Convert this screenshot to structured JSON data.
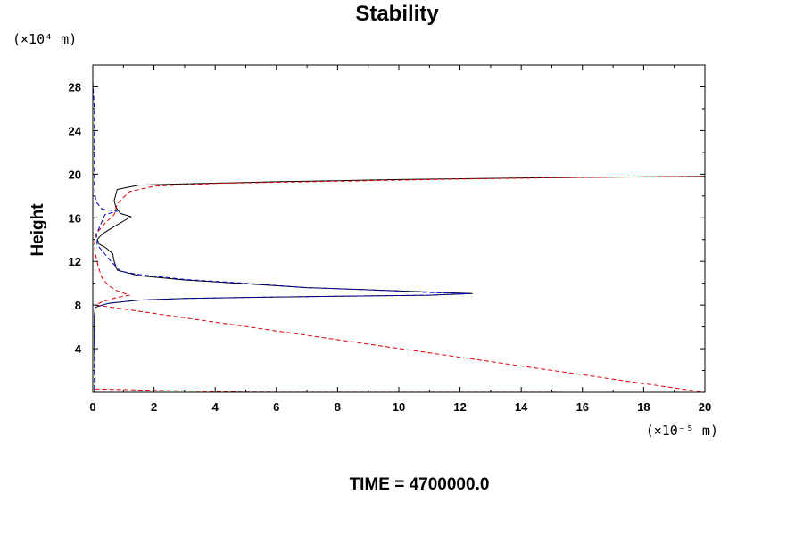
{
  "chart_data": {
    "type": "line",
    "title": "Stability",
    "ylabel": "Height",
    "y_unit": "(×10⁴ m)",
    "x_unit": "(×10⁻⁵ m)",
    "footer": "TIME = 4700000.0",
    "xlim": [
      0,
      20
    ],
    "ylim": [
      0,
      30
    ],
    "x_ticks": [
      0,
      2,
      4,
      6,
      8,
      10,
      12,
      14,
      16,
      18,
      20
    ],
    "y_ticks": [
      4,
      8,
      12,
      16,
      20,
      24,
      28
    ],
    "grid": false,
    "series": [
      {
        "color": "#000000",
        "dash": "solid",
        "points": [
          [
            0.05,
            0
          ],
          [
            0.08,
            1
          ],
          [
            0.06,
            3
          ],
          [
            0.05,
            5
          ],
          [
            0.05,
            7
          ],
          [
            0.08,
            7.8
          ],
          [
            0.5,
            8.15
          ],
          [
            1.5,
            8.45
          ],
          [
            3,
            8.6
          ],
          [
            5,
            8.7
          ],
          [
            8,
            8.8
          ],
          [
            11,
            8.9
          ],
          [
            12.4,
            9.05
          ],
          [
            11,
            9.2
          ],
          [
            9,
            9.4
          ],
          [
            7,
            9.6
          ],
          [
            5,
            9.95
          ],
          [
            3,
            10.3
          ],
          [
            1.5,
            10.7
          ],
          [
            0.8,
            11.2
          ],
          [
            0.7,
            12
          ],
          [
            0.65,
            12.7
          ],
          [
            0.4,
            13.3
          ],
          [
            0.2,
            13.6
          ],
          [
            0.15,
            14
          ],
          [
            0.3,
            14.5
          ],
          [
            0.7,
            15.2
          ],
          [
            1.25,
            16.1
          ],
          [
            0.9,
            16.4
          ],
          [
            0.75,
            17
          ],
          [
            0.7,
            17.6
          ],
          [
            0.8,
            18.6
          ],
          [
            1.5,
            19
          ],
          [
            3,
            19.1
          ],
          [
            6,
            19.3
          ],
          [
            10,
            19.5
          ],
          [
            14,
            19.65
          ],
          [
            18,
            19.75
          ],
          [
            20,
            19.8
          ]
        ]
      },
      {
        "color": "#0000cc",
        "dash": "dashed",
        "points": [
          [
            0,
            28.5
          ],
          [
            0.05,
            26
          ],
          [
            0.05,
            22
          ],
          [
            0.05,
            19
          ],
          [
            0.1,
            17.5
          ],
          [
            0.3,
            16.8
          ],
          [
            0.8,
            16.6
          ],
          [
            0.4,
            16.3
          ],
          [
            0.12,
            14.5
          ],
          [
            0.15,
            13.5
          ],
          [
            0.6,
            12
          ],
          [
            0.9,
            11.1
          ],
          [
            1.5,
            10.8
          ],
          [
            3,
            10.35
          ],
          [
            5,
            10
          ],
          [
            7,
            9.6
          ],
          [
            9,
            9.4
          ],
          [
            11,
            9.15
          ],
          [
            12.3,
            9.05
          ],
          [
            11,
            8.9
          ],
          [
            8,
            8.8
          ],
          [
            5,
            8.7
          ],
          [
            3,
            8.6
          ],
          [
            1.5,
            8.45
          ],
          [
            0.5,
            8.15
          ],
          [
            0.08,
            7.8
          ],
          [
            0.05,
            6
          ],
          [
            0.05,
            3
          ],
          [
            0.05,
            1
          ],
          [
            0.05,
            0
          ]
        ]
      },
      {
        "color": "#dd0000",
        "dash": "dashed",
        "points": [
          [
            0.08,
            0.3
          ],
          [
            1,
            0.25
          ],
          [
            2.5,
            0.15
          ],
          [
            4,
            0.08
          ],
          [
            5,
            0.02
          ],
          [
            20,
            0
          ],
          [
            0.1,
            8
          ],
          [
            0.3,
            8.3
          ],
          [
            0.8,
            8.7
          ],
          [
            1.2,
            8.9
          ],
          [
            0.8,
            9.3
          ],
          [
            0.5,
            9.8
          ],
          [
            0.3,
            10.5
          ],
          [
            0.18,
            11.5
          ],
          [
            0.1,
            12.5
          ],
          [
            0.05,
            13.5
          ],
          [
            0.1,
            14.5
          ],
          [
            0.4,
            15.5
          ],
          [
            0.7,
            16.3
          ],
          [
            0.8,
            17.3
          ],
          [
            1.2,
            18.4
          ],
          [
            2,
            18.9
          ],
          [
            4,
            19.15
          ],
          [
            8,
            19.35
          ],
          [
            12,
            19.55
          ],
          [
            16,
            19.7
          ],
          [
            20,
            19.8
          ]
        ]
      }
    ]
  }
}
